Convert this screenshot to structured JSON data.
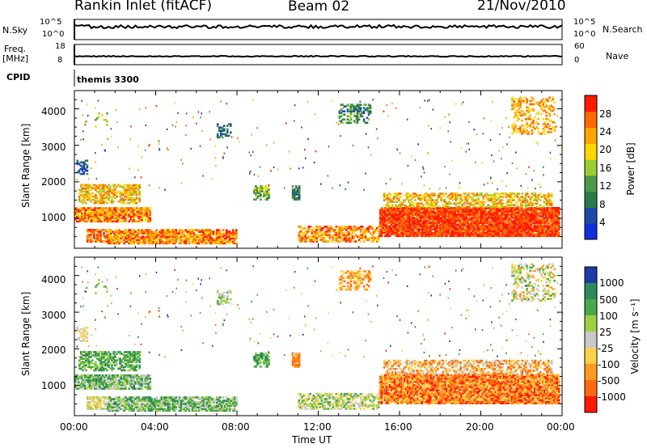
{
  "header": {
    "station": "Rankin Inlet (fitACF)",
    "beam": "Beam 02",
    "date": "21/Nov/2010"
  },
  "status_panels": {
    "nsky_label": "N.Sky",
    "nsearch_label": "N.Search",
    "nsky_ticks": [
      "10^5",
      "10^0"
    ],
    "nsearch_ticks": [
      "10^5",
      "10^0"
    ],
    "freq_label": "Freq.",
    "freq_unit": "[MHz]",
    "freq_ticks": [
      "18",
      "8"
    ],
    "nave_label": "Nave",
    "nave_ticks": [
      "60",
      "0"
    ],
    "cpid_label": "CPID",
    "cpid_value": "themis 3300"
  },
  "colors": {
    "power": [
      "#1030e0",
      "#1e4aa8",
      "#2a7a4a",
      "#4a9a4a",
      "#9acd32",
      "#ffd700",
      "#ffa500",
      "#ff6a00",
      "#ff1a00"
    ],
    "velocity": [
      "#1e3aa8",
      "#2a8a5a",
      "#4aa84a",
      "#a0d040",
      "#c8c8c8",
      "#ffd24a",
      "#ff9a20",
      "#ff6a10",
      "#ff1a00"
    ]
  },
  "chart_data": [
    {
      "type": "heatmap",
      "name": "Power",
      "ylabel": "Slant Range [km]",
      "yticks": [
        "1000",
        "2000",
        "3000",
        "4000"
      ],
      "xticks": [
        "00:00",
        "04:00",
        "08:00",
        "12:00",
        "16:00",
        "20:00",
        "00:00"
      ],
      "xlabel": "Time UT",
      "ylim": [
        180,
        4500
      ],
      "colorbar_label": "Power [dB]",
      "colorbar_ticks": [
        "4",
        "8",
        "12",
        "16",
        "20",
        "24",
        "28"
      ],
      "scale": [
        0,
        32
      ]
    },
    {
      "type": "heatmap",
      "name": "Velocity",
      "ylabel": "Slant Range [km]",
      "yticks": [
        "1000",
        "2000",
        "3000",
        "4000"
      ],
      "xticks": [
        "00:00",
        "04:00",
        "08:00",
        "12:00",
        "16:00",
        "20:00",
        "00:00"
      ],
      "xlabel": "Time UT",
      "ylim": [
        180,
        4500
      ],
      "colorbar_label": "Velocity [m s⁻¹]",
      "colorbar_ticks": [
        "1000",
        "500",
        "100",
        "25",
        "-25",
        "-100",
        "-500",
        "-1000"
      ]
    }
  ]
}
